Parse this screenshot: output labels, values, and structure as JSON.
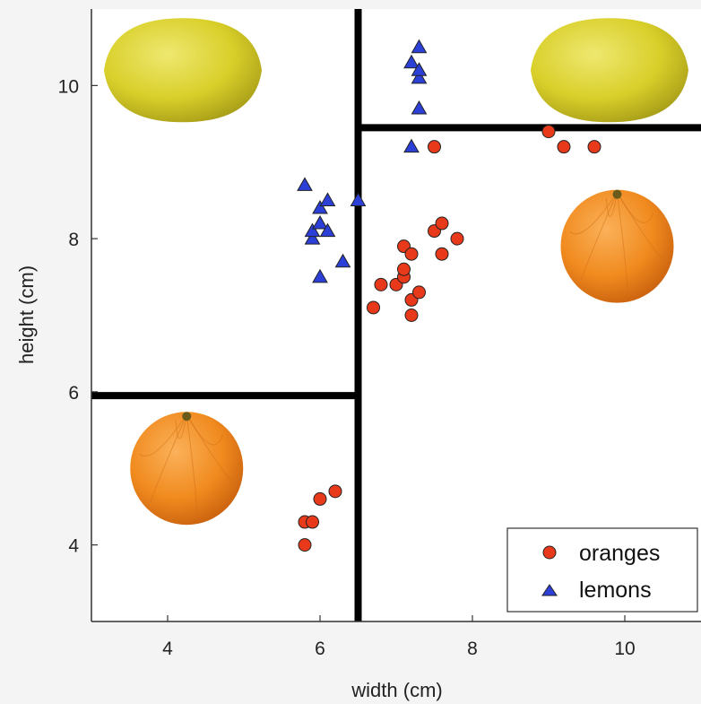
{
  "chart_data": {
    "type": "scatter",
    "title": "",
    "xlabel": "width (cm)",
    "ylabel": "height (cm)",
    "xlim": [
      3,
      11
    ],
    "ylim": [
      3,
      11
    ],
    "xticks": [
      4,
      6,
      8,
      10
    ],
    "yticks": [
      4,
      6,
      8,
      10
    ],
    "grid": false,
    "legend_position": "bottom-right",
    "series": [
      {
        "name": "oranges",
        "marker": "circle",
        "color": "#e83a1a",
        "points": [
          {
            "x": 5.8,
            "y": 4.0
          },
          {
            "x": 5.8,
            "y": 4.3
          },
          {
            "x": 5.9,
            "y": 4.3
          },
          {
            "x": 6.0,
            "y": 4.6
          },
          {
            "x": 6.2,
            "y": 4.7
          },
          {
            "x": 6.7,
            "y": 7.1
          },
          {
            "x": 6.8,
            "y": 7.4
          },
          {
            "x": 7.0,
            "y": 7.4
          },
          {
            "x": 7.1,
            "y": 7.5
          },
          {
            "x": 7.1,
            "y": 7.6
          },
          {
            "x": 7.1,
            "y": 7.9
          },
          {
            "x": 7.2,
            "y": 7.0
          },
          {
            "x": 7.2,
            "y": 7.2
          },
          {
            "x": 7.2,
            "y": 7.8
          },
          {
            "x": 7.3,
            "y": 7.3
          },
          {
            "x": 7.5,
            "y": 8.1
          },
          {
            "x": 7.6,
            "y": 8.2
          },
          {
            "x": 7.6,
            "y": 7.8
          },
          {
            "x": 7.8,
            "y": 8.0
          },
          {
            "x": 7.5,
            "y": 9.2
          },
          {
            "x": 9.0,
            "y": 9.4
          },
          {
            "x": 9.2,
            "y": 9.2
          },
          {
            "x": 9.6,
            "y": 9.2
          }
        ]
      },
      {
        "name": "lemons",
        "marker": "triangle",
        "color": "#2c3fd6",
        "points": [
          {
            "x": 5.8,
            "y": 8.7
          },
          {
            "x": 5.9,
            "y": 8.0
          },
          {
            "x": 5.9,
            "y": 8.1
          },
          {
            "x": 6.0,
            "y": 8.2
          },
          {
            "x": 6.0,
            "y": 8.4
          },
          {
            "x": 6.1,
            "y": 8.5
          },
          {
            "x": 6.1,
            "y": 8.1
          },
          {
            "x": 6.0,
            "y": 7.5
          },
          {
            "x": 6.3,
            "y": 7.7
          },
          {
            "x": 6.5,
            "y": 8.5
          },
          {
            "x": 7.2,
            "y": 9.2
          },
          {
            "x": 7.3,
            "y": 9.7
          },
          {
            "x": 7.2,
            "y": 10.3
          },
          {
            "x": 7.3,
            "y": 10.1
          },
          {
            "x": 7.3,
            "y": 10.2
          },
          {
            "x": 7.3,
            "y": 10.5
          }
        ]
      }
    ],
    "decision_boundaries": [
      {
        "x1": 6.5,
        "y1": 3,
        "x2": 6.5,
        "y2": 11
      },
      {
        "x1": 3,
        "y1": 5.95,
        "x2": 6.5,
        "y2": 5.95
      },
      {
        "x1": 6.5,
        "y1": 9.45,
        "x2": 11,
        "y2": 9.45
      }
    ],
    "region_images": [
      {
        "fruit": "lemon",
        "x": 4.2,
        "y": 10.2,
        "color": "#d9cf2a"
      },
      {
        "fruit": "lemon",
        "x": 9.8,
        "y": 10.2,
        "color": "#d9cf2a"
      },
      {
        "fruit": "orange",
        "x": 9.9,
        "y": 7.9,
        "color": "#f08a1e"
      },
      {
        "fruit": "orange",
        "x": 4.25,
        "y": 5.0,
        "color": "#f08a1e"
      }
    ]
  }
}
